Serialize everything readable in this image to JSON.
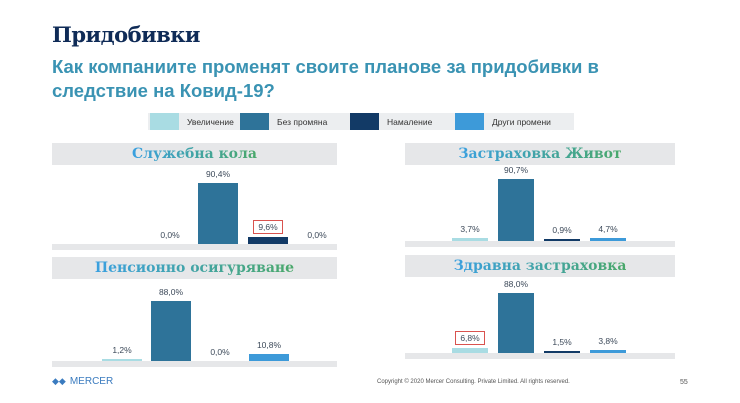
{
  "title": "Придобивки",
  "subtitle": "Как компаниите променят своите планове за придобивки в следствие на Ковид-19?",
  "chart_data": {
    "type": "bar",
    "categories": [
      "Увеличение",
      "Без промяна",
      "Намаление",
      "Други промени"
    ],
    "colors": [
      "#a9dce3",
      "#2e7399",
      "#123a66",
      "#3d9ad9"
    ],
    "charts": [
      {
        "title": "Служебна кола",
        "values": [
          0.0,
          90.4,
          9.6,
          0.0
        ],
        "labels": [
          "0,0%",
          "90,4%",
          "9,6%",
          "0,0%"
        ],
        "highlight": 2
      },
      {
        "title": "Застраховка Живот",
        "values": [
          3.7,
          90.7,
          0.9,
          4.7
        ],
        "labels": [
          "3,7%",
          "90,7%",
          "0,9%",
          "4,7%"
        ],
        "highlight": -1
      },
      {
        "title": "Пенсионно осигуряване",
        "values": [
          1.2,
          88.0,
          0.0,
          10.8
        ],
        "labels": [
          "1,2%",
          "88,0%",
          "0,0%",
          "10,8%"
        ],
        "highlight": -1
      },
      {
        "title": "Здравна застраховка",
        "values": [
          6.8,
          88.0,
          1.5,
          3.8
        ],
        "labels": [
          "6,8%",
          "88,0%",
          "1,5%",
          "3,8%"
        ],
        "highlight": 0
      }
    ]
  },
  "footer": {
    "logo": "MERCER",
    "copyright": "Copyright © 2020 Mercer Consulting. Private Limited. All rights reserved.",
    "page": "55"
  }
}
